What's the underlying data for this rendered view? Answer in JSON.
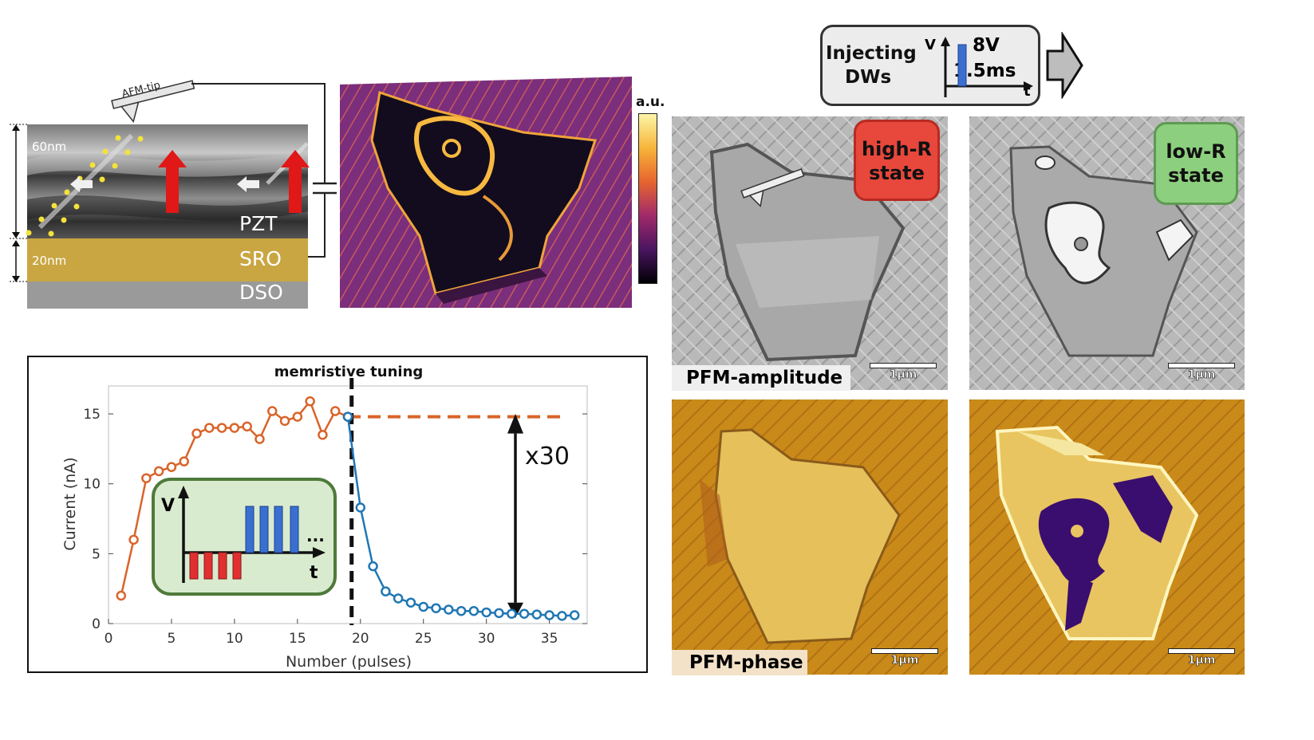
{
  "tem": {
    "tip_label": "AFM-tip",
    "thickness_pzt": "60nm",
    "thickness_sro": "20nm",
    "layer_pzt": "PZT",
    "layer_sro": "SRO",
    "layer_dso": "DSO"
  },
  "colorbar_unit": "a.u.",
  "inject": {
    "text_line1": "Injecting",
    "text_line2": "DWs",
    "axis_v": "V",
    "axis_t": "t",
    "voltage": "8V",
    "duration": "1.5ms"
  },
  "states": {
    "high": "high-R",
    "low": "low-R",
    "word": "state",
    "high_color": "#e8473c",
    "low_color": "#8ccf7e"
  },
  "pfm": {
    "amplitude_label": "PFM-amplitude",
    "phase_label": "PFM-phase",
    "scalebar": "1µm"
  },
  "chart_data": {
    "type": "line",
    "title": "memristive tuning",
    "xlabel": "Number (pulses)",
    "ylabel": "Current (nA)",
    "xlim": [
      0,
      38
    ],
    "ylim": [
      0,
      17
    ],
    "xticks": [
      0,
      5,
      10,
      15,
      20,
      25,
      30,
      35
    ],
    "yticks": [
      0,
      5,
      10,
      15
    ],
    "series": [
      {
        "color": "#d9642a",
        "x": [
          1,
          2,
          3,
          4,
          5,
          6,
          7,
          8,
          9,
          10,
          11,
          12,
          13,
          14,
          15,
          16,
          17,
          18,
          19
        ],
        "y": [
          2.0,
          6.0,
          10.4,
          10.9,
          11.2,
          11.6,
          13.6,
          14.0,
          14.0,
          14.0,
          14.1,
          13.2,
          15.2,
          14.5,
          14.8,
          15.9,
          13.5,
          15.2,
          14.8
        ]
      },
      {
        "color": "#1f77b4",
        "x": [
          19,
          20,
          21,
          22,
          23,
          24,
          25,
          26,
          27,
          28,
          29,
          30,
          31,
          32,
          33,
          34,
          35,
          36,
          37
        ],
        "y": [
          14.8,
          8.3,
          4.1,
          2.3,
          1.8,
          1.5,
          1.2,
          1.1,
          1.0,
          0.9,
          0.9,
          0.8,
          0.75,
          0.7,
          0.7,
          0.65,
          0.6,
          0.55,
          0.6
        ]
      }
    ],
    "dashed_level": 14.8,
    "vline_x": 19.3,
    "ratio_label": "x30",
    "inset": {
      "axis_v": "V",
      "axis_t": "t",
      "ellipsis": "..."
    }
  }
}
